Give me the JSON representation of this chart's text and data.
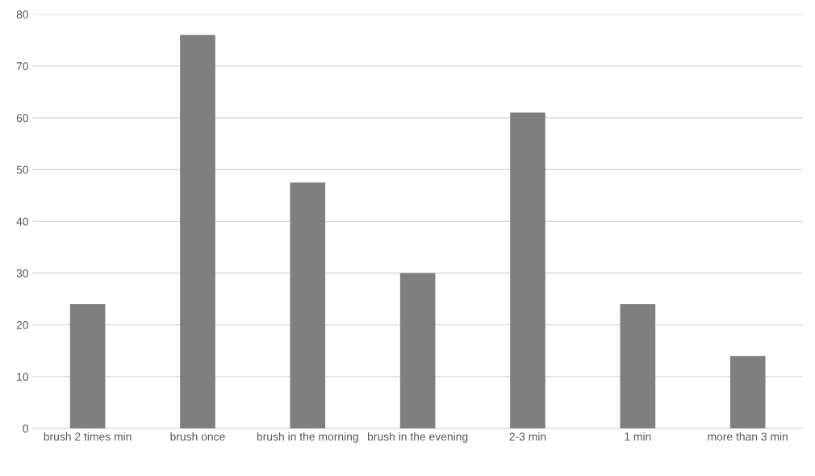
{
  "chart_data": {
    "type": "bar",
    "categories": [
      "brush 2 times min",
      "brush once",
      "brush in the morning",
      "brush in the evening",
      "2-3 min",
      "1 min",
      "more than 3 min"
    ],
    "values": [
      24,
      76,
      47.5,
      30,
      61,
      24,
      14
    ],
    "color": "#7f7f7f",
    "ylim": [
      0,
      80
    ],
    "yticks": [
      0,
      10,
      20,
      30,
      40,
      50,
      60,
      70,
      80
    ],
    "grid": "y"
  }
}
